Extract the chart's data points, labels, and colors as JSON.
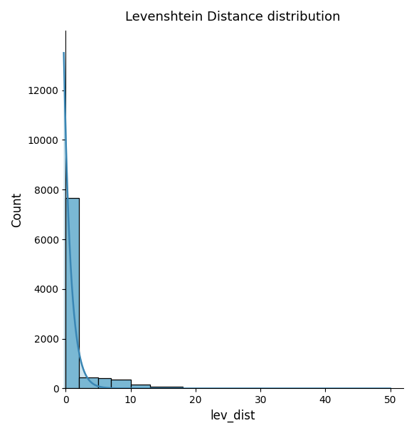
{
  "title": "Levenshtein Distance distribution",
  "xlabel": "lev_dist",
  "ylabel": "Count",
  "bar_color": "#7ab8d4",
  "bar_edge_color": "black",
  "line_color": "#3a86b4",
  "xlim": [
    -0.5,
    52
  ],
  "ylim": [
    0,
    14400
  ],
  "bin_edges": [
    0,
    2,
    5,
    7,
    10,
    13,
    18,
    50
  ],
  "bin_counts": [
    7650,
    450,
    420,
    370,
    155,
    80,
    15
  ],
  "kde_peak": 13500,
  "kde_decay": 0.95,
  "figsize": [
    5.82,
    6.08
  ],
  "dpi": 100,
  "yticks": [
    0,
    2000,
    4000,
    6000,
    8000,
    10000,
    12000
  ],
  "xticks": [
    0,
    10,
    20,
    30,
    40,
    50
  ]
}
